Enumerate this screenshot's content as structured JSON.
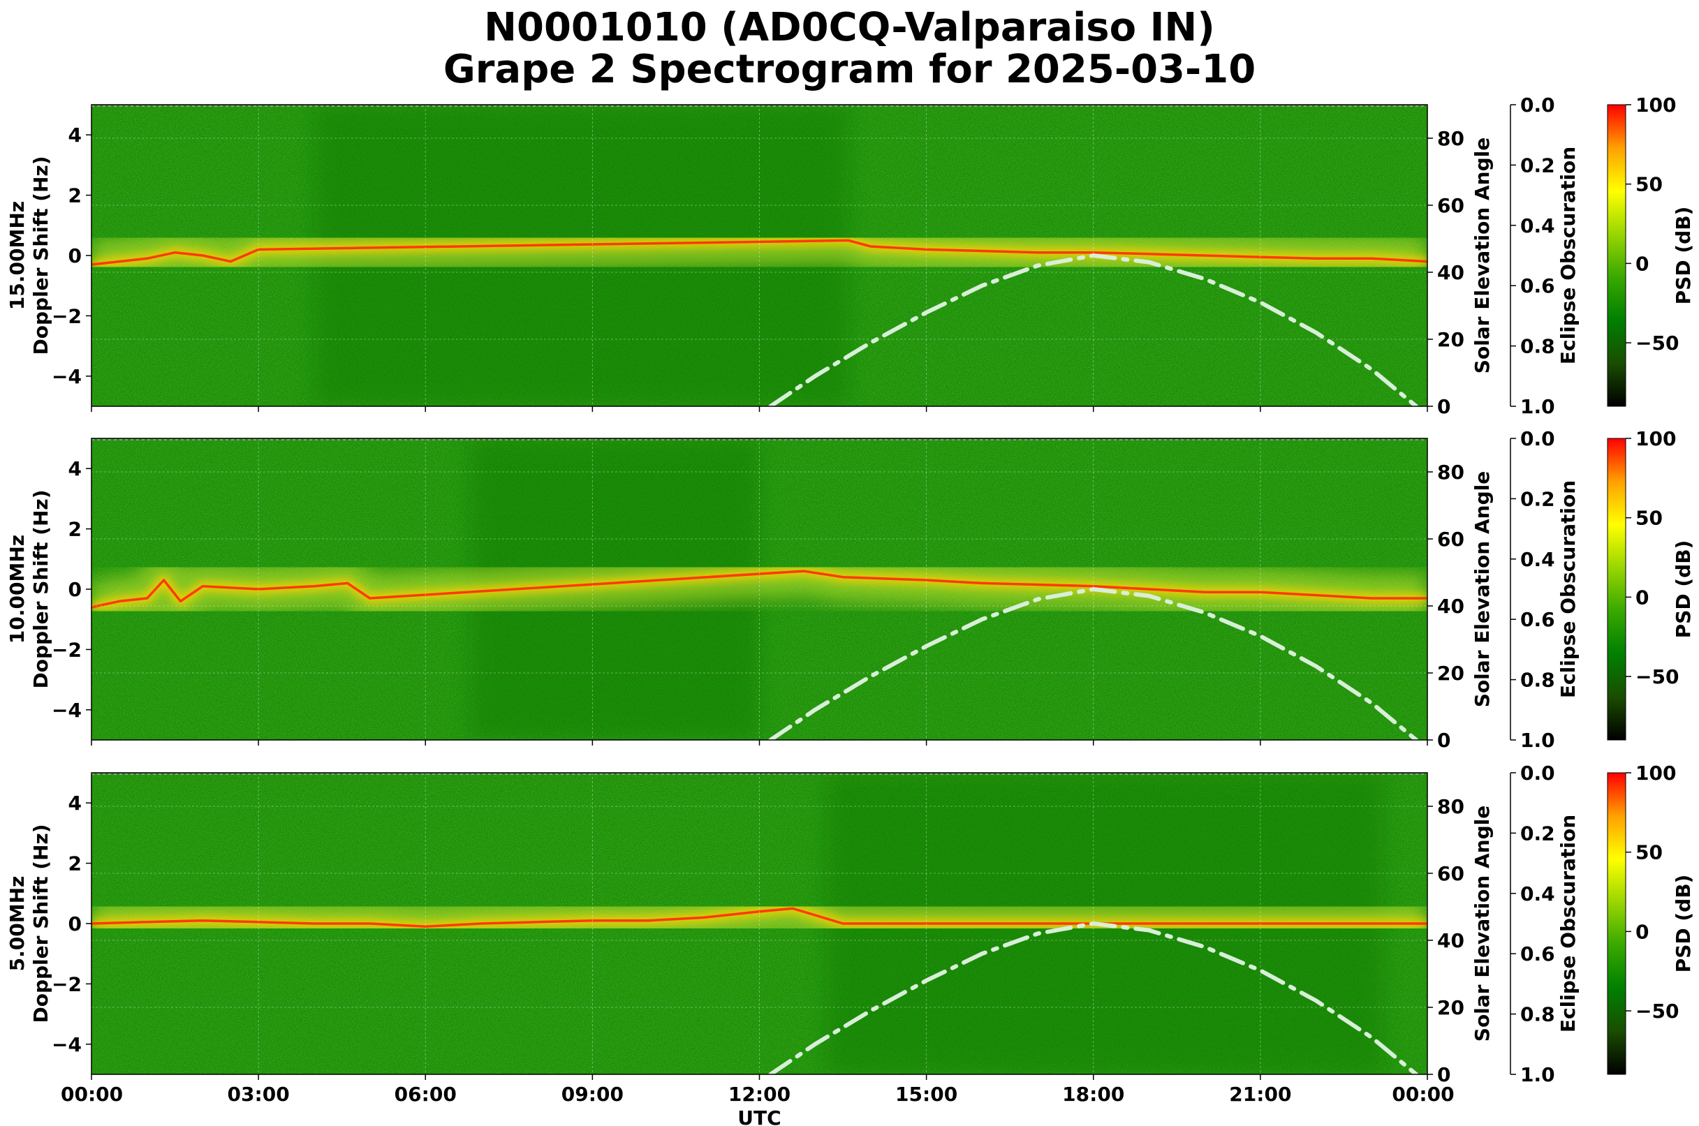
{
  "title_line1": "N0001010 (AD0CQ-Valparaiso IN)",
  "title_line2": "Grape 2 Spectrogram for 2025-03-10",
  "chart_data": {
    "type": "heatmap",
    "colorbar": {
      "label": "PSD (dB)",
      "ticks": [
        "100",
        "50",
        "0",
        "−50"
      ],
      "tick_values": [
        100,
        50,
        0,
        -50
      ],
      "range": [
        -90,
        100
      ],
      "colors": [
        "#000000",
        "#1a4d00",
        "#008000",
        "#39a800",
        "#99d600",
        "#ffff00",
        "#ffa000",
        "#ff0000"
      ]
    },
    "x": {
      "label": "UTC",
      "range_hours": [
        0,
        24
      ],
      "ticks": [
        "00:00",
        "03:00",
        "06:00",
        "09:00",
        "12:00",
        "15:00",
        "18:00",
        "21:00",
        "00:00"
      ],
      "tick_hours": [
        0,
        3,
        6,
        9,
        12,
        15,
        18,
        21,
        24
      ]
    },
    "y_left": {
      "unit_label": "Doppler Shift (Hz)",
      "range": [
        -5,
        5
      ],
      "ticks": [
        "4",
        "2",
        "0",
        "−2",
        "−4"
      ],
      "tick_values": [
        4,
        2,
        0,
        -2,
        -4
      ]
    },
    "y_right": {
      "label": "Solar Elevation Angle",
      "range": [
        0,
        90
      ],
      "ticks": [
        "80",
        "60",
        "40",
        "20",
        "0"
      ],
      "tick_values": [
        80,
        60,
        40,
        20,
        0
      ]
    },
    "y_eclipse": {
      "label": "Eclipse Obscuration",
      "range": [
        0,
        1
      ],
      "ticks": [
        "0.0",
        "0.2",
        "0.4",
        "0.6",
        "0.8",
        "1.0"
      ],
      "tick_values": [
        0.0,
        0.2,
        0.4,
        0.6,
        0.8,
        1.0
      ]
    },
    "solar_elevation_curve": {
      "style": "dash-dot",
      "color": "#d8efd8",
      "hours": [
        12.2,
        13,
        14,
        15,
        16,
        17,
        18,
        19,
        20,
        21,
        22,
        23,
        23.8
      ],
      "degrees": [
        0,
        9,
        19,
        28,
        36,
        42,
        45,
        43,
        38,
        31,
        22,
        11,
        0
      ]
    },
    "panels": [
      {
        "frequency_label": "15.00MHz",
        "carrier_trace": {
          "hours": [
            0,
            0.5,
            1,
            1.5,
            2,
            2.5,
            3,
            13.6,
            14,
            15,
            16,
            17,
            18,
            19,
            20,
            21,
            22,
            23,
            24
          ],
          "hz": [
            -0.3,
            -0.2,
            -0.1,
            0.1,
            0.0,
            -0.2,
            0.2,
            0.5,
            0.3,
            0.2,
            0.15,
            0.1,
            0.1,
            0.05,
            0.0,
            -0.05,
            -0.1,
            -0.1,
            -0.2
          ]
        }
      },
      {
        "frequency_label": "10.00MHz",
        "carrier_trace": {
          "hours": [
            0,
            0.5,
            1,
            1.3,
            1.6,
            2,
            3,
            4,
            4.6,
            5.0,
            12.8,
            13.5,
            15,
            16,
            17,
            18,
            19,
            20,
            21,
            22,
            23,
            24
          ],
          "hz": [
            -0.6,
            -0.4,
            -0.3,
            0.3,
            -0.4,
            0.1,
            0.0,
            0.1,
            0.2,
            -0.3,
            0.6,
            0.4,
            0.3,
            0.2,
            0.15,
            0.1,
            0.0,
            -0.1,
            -0.1,
            -0.2,
            -0.3,
            -0.3
          ]
        }
      },
      {
        "frequency_label": "5.00MHz",
        "carrier_trace": {
          "hours": [
            0,
            1,
            2,
            3,
            4,
            5,
            6,
            7,
            8,
            9,
            10,
            11,
            12,
            12.6,
            13.5,
            15,
            18,
            21,
            24
          ],
          "hz": [
            0.0,
            0.05,
            0.1,
            0.05,
            0.0,
            0.0,
            -0.1,
            0.0,
            0.05,
            0.1,
            0.1,
            0.2,
            0.4,
            0.5,
            0.0,
            0.0,
            0.0,
            0.0,
            0.0
          ]
        }
      }
    ]
  }
}
